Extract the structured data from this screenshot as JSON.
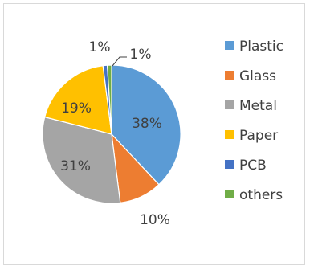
{
  "chart_data": {
    "type": "pie",
    "title": "",
    "slices": [
      {
        "label": "Plastic",
        "value": 38,
        "display": "38%",
        "color": "#5b9bd5"
      },
      {
        "label": "Glass",
        "value": 10,
        "display": "10%",
        "color": "#ed7d31"
      },
      {
        "label": "Metal",
        "value": 31,
        "display": "31%",
        "color": "#a5a5a5"
      },
      {
        "label": "Paper",
        "value": 19,
        "display": "19%",
        "color": "#ffc000"
      },
      {
        "label": "PCB",
        "value": 1,
        "display": "1%",
        "color": "#4472c4"
      },
      {
        "label": "others",
        "value": 1,
        "display": "1%",
        "color": "#70ad47"
      }
    ],
    "legend_position": "right",
    "start_angle": "top, clockwise"
  }
}
